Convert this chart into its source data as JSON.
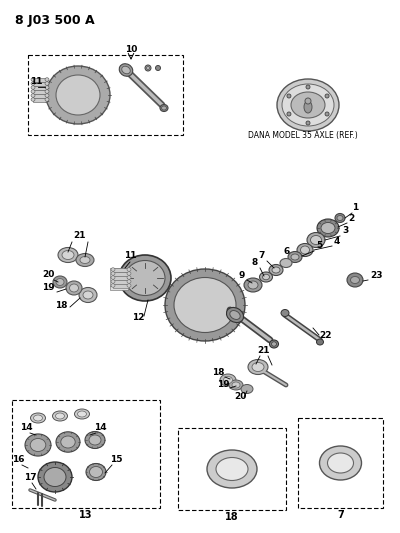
{
  "title": "8 J03 500 A",
  "bg_color": "#ffffff",
  "dana_label": "DANA MODEL 35 AXLE (REF.)",
  "fig_width": 4.0,
  "fig_height": 5.33,
  "dpi": 100
}
